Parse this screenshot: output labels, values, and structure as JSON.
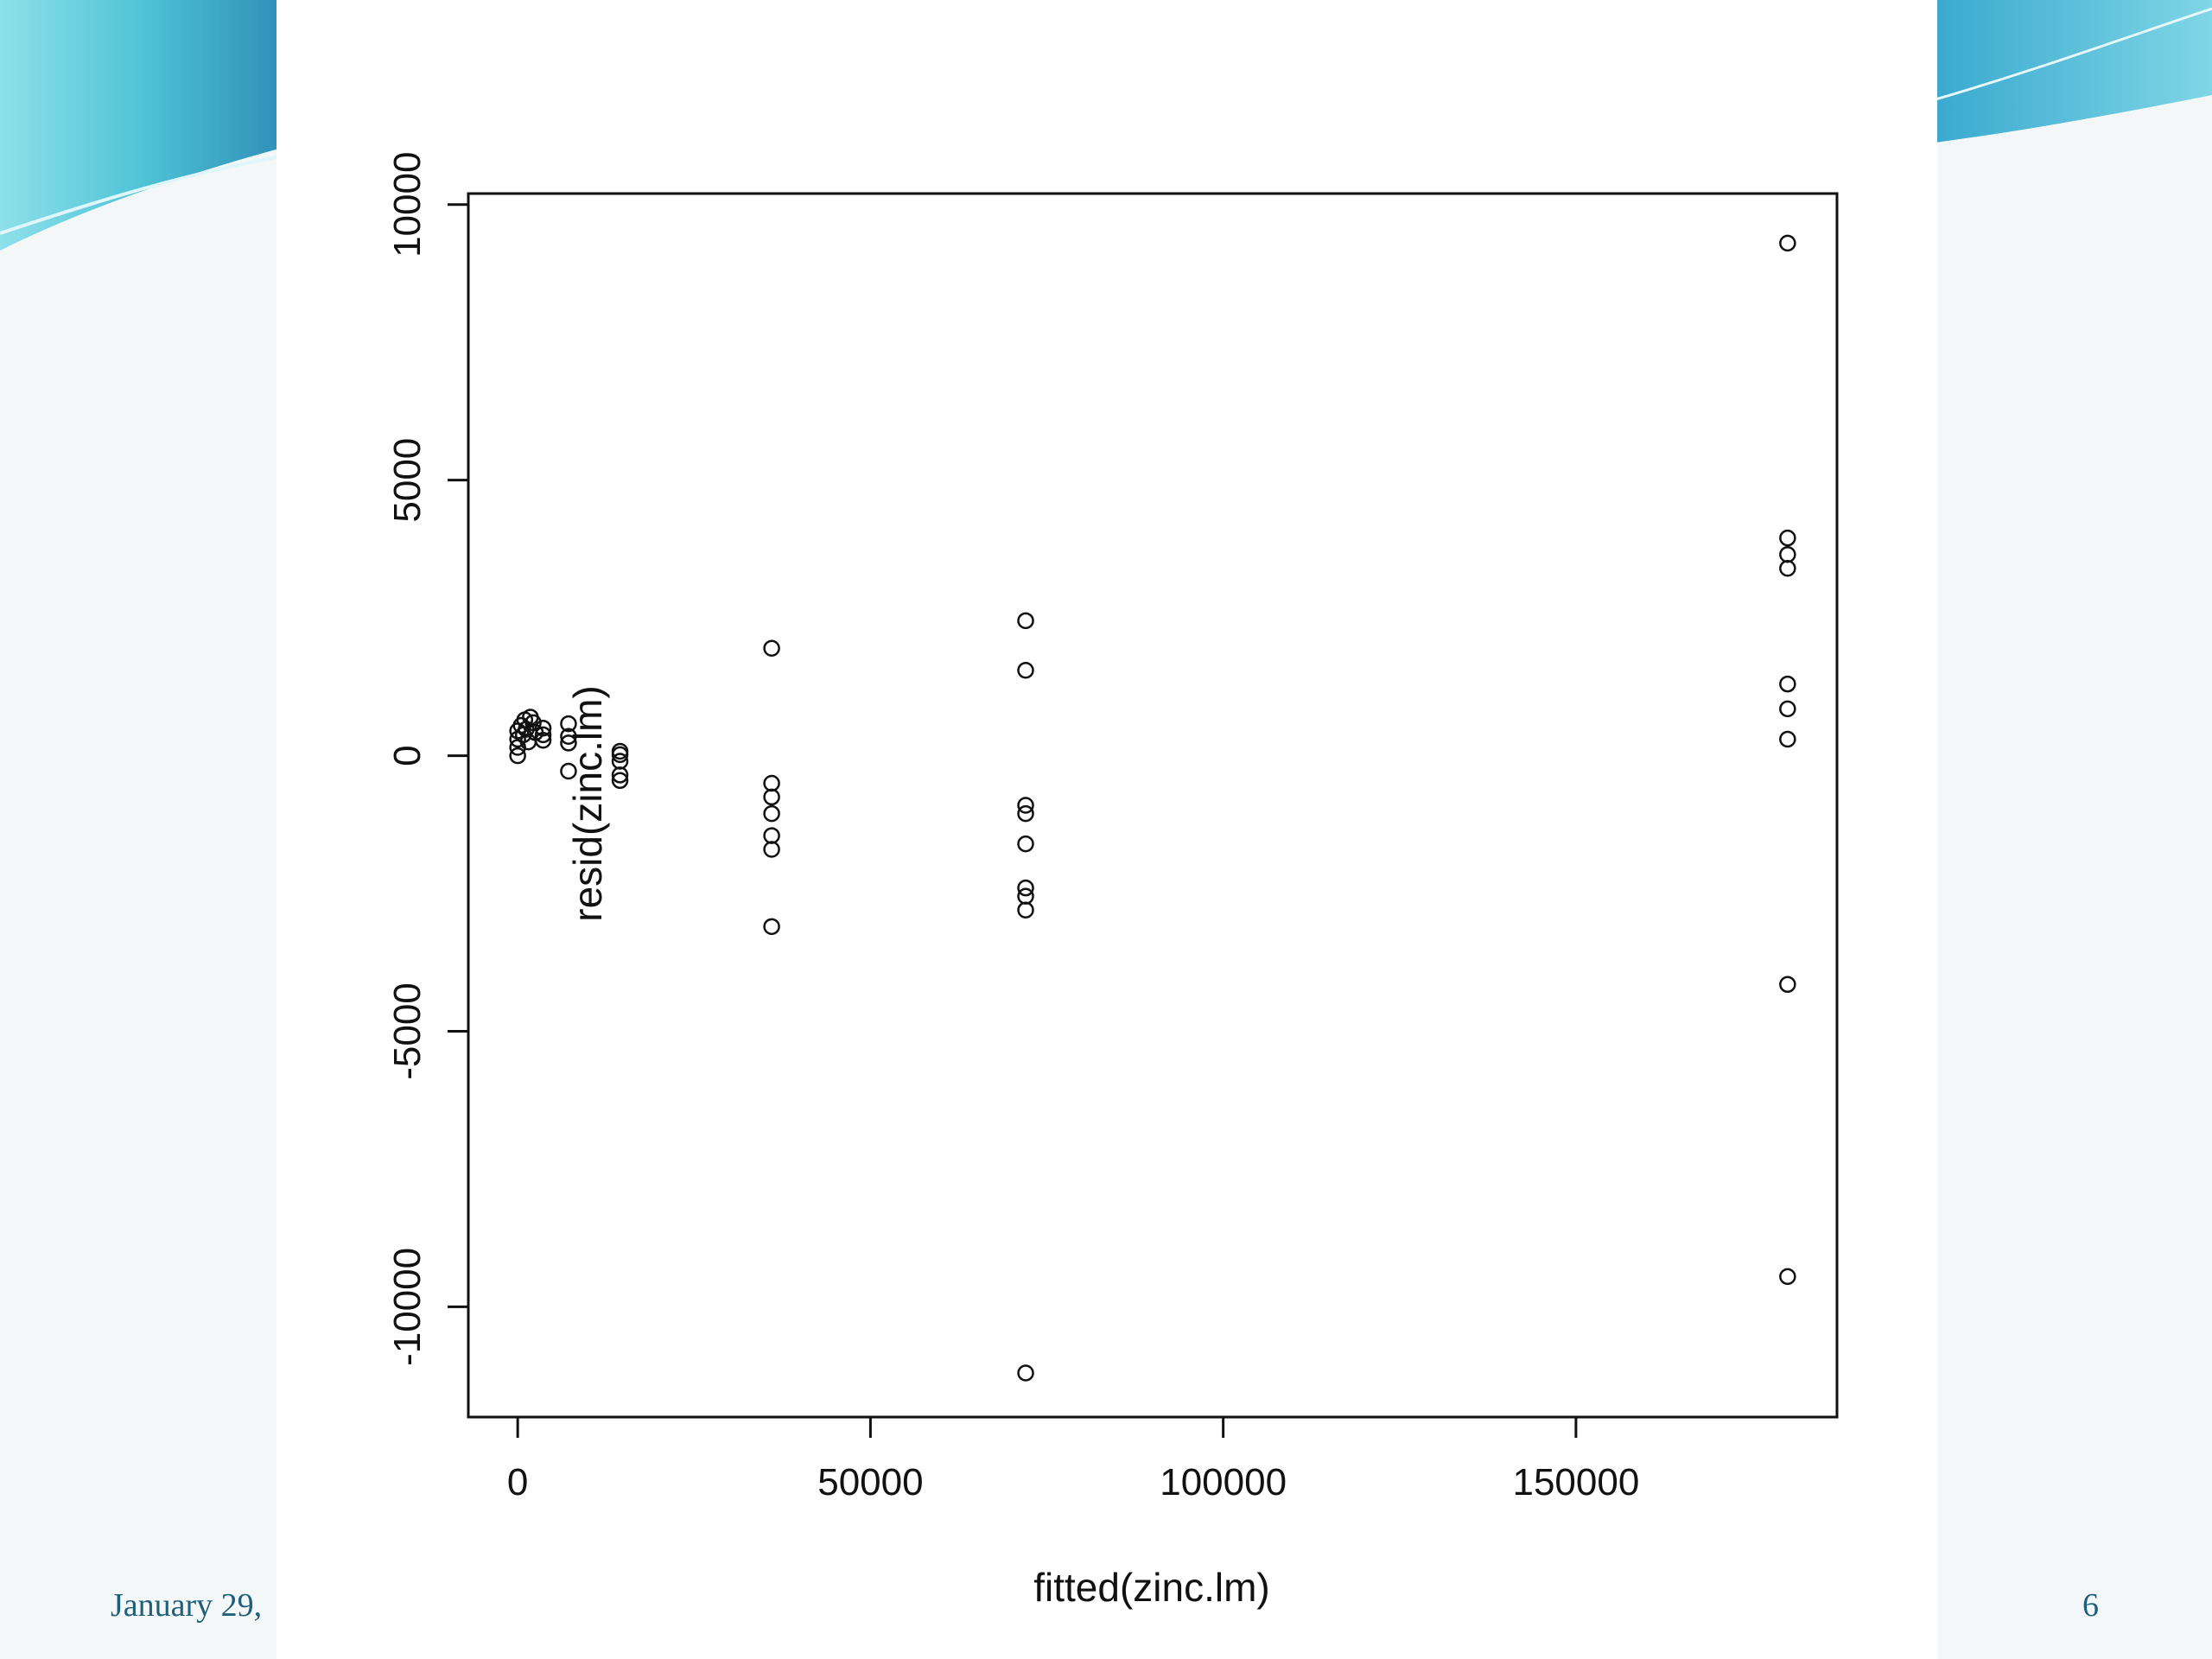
{
  "footer": {
    "date": "January 29,",
    "page_number": "6"
  },
  "colors": {
    "accent_light": "#9ee6ee",
    "accent_mid": "#4fc3d6",
    "accent_dark": "#2e8fb8",
    "footer_text": "#1f5f7a"
  },
  "chart_data": {
    "type": "scatter",
    "title": "",
    "xlabel": "fitted(zinc.lm)",
    "ylabel": "resid(zinc.lm)",
    "xlim": [
      -7000,
      187000
    ],
    "ylim": [
      -12000,
      10200
    ],
    "xticks": [
      0,
      50000,
      100000,
      150000
    ],
    "yticks": [
      -10000,
      -5000,
      0,
      5000,
      10000
    ],
    "xtick_labels": [
      "0",
      "50000",
      "100000",
      "150000"
    ],
    "ytick_labels": [
      "-10000",
      "-5000",
      "0",
      "5000",
      "10000"
    ],
    "grid": false,
    "marker": "open-circle",
    "points": [
      {
        "x": 0,
        "y": 450
      },
      {
        "x": 0,
        "y": 300
      },
      {
        "x": 0,
        "y": 150
      },
      {
        "x": 0,
        "y": 0
      },
      {
        "x": 500,
        "y": 550
      },
      {
        "x": 800,
        "y": 380
      },
      {
        "x": 1000,
        "y": 650
      },
      {
        "x": 1200,
        "y": 480
      },
      {
        "x": 1500,
        "y": 250
      },
      {
        "x": 1800,
        "y": 700
      },
      {
        "x": 2200,
        "y": 600
      },
      {
        "x": 2500,
        "y": 420
      },
      {
        "x": 3600,
        "y": 500
      },
      {
        "x": 3600,
        "y": 380
      },
      {
        "x": 3600,
        "y": 280
      },
      {
        "x": 7200,
        "y": 580
      },
      {
        "x": 7200,
        "y": 350
      },
      {
        "x": 7200,
        "y": 230
      },
      {
        "x": 7200,
        "y": -280
      },
      {
        "x": 14500,
        "y": 80
      },
      {
        "x": 14500,
        "y": 20
      },
      {
        "x": 14500,
        "y": -100
      },
      {
        "x": 14500,
        "y": -350
      },
      {
        "x": 14500,
        "y": -450
      },
      {
        "x": 36000,
        "y": 1950
      },
      {
        "x": 36000,
        "y": -500
      },
      {
        "x": 36000,
        "y": -750
      },
      {
        "x": 36000,
        "y": -1050
      },
      {
        "x": 36000,
        "y": -1450
      },
      {
        "x": 36000,
        "y": -1700
      },
      {
        "x": 36000,
        "y": -3100
      },
      {
        "x": 72000,
        "y": 2450
      },
      {
        "x": 72000,
        "y": 1550
      },
      {
        "x": 72000,
        "y": -900
      },
      {
        "x": 72000,
        "y": -1050
      },
      {
        "x": 72000,
        "y": -1600
      },
      {
        "x": 72000,
        "y": -2400
      },
      {
        "x": 72000,
        "y": -2550
      },
      {
        "x": 72000,
        "y": -2800
      },
      {
        "x": 72000,
        "y": -11200
      },
      {
        "x": 180000,
        "y": 9300
      },
      {
        "x": 180000,
        "y": 3950
      },
      {
        "x": 180000,
        "y": 3650
      },
      {
        "x": 180000,
        "y": 3400
      },
      {
        "x": 180000,
        "y": 1300
      },
      {
        "x": 180000,
        "y": 850
      },
      {
        "x": 180000,
        "y": 300
      },
      {
        "x": 180000,
        "y": -4150
      },
      {
        "x": 180000,
        "y": -9450
      }
    ]
  }
}
